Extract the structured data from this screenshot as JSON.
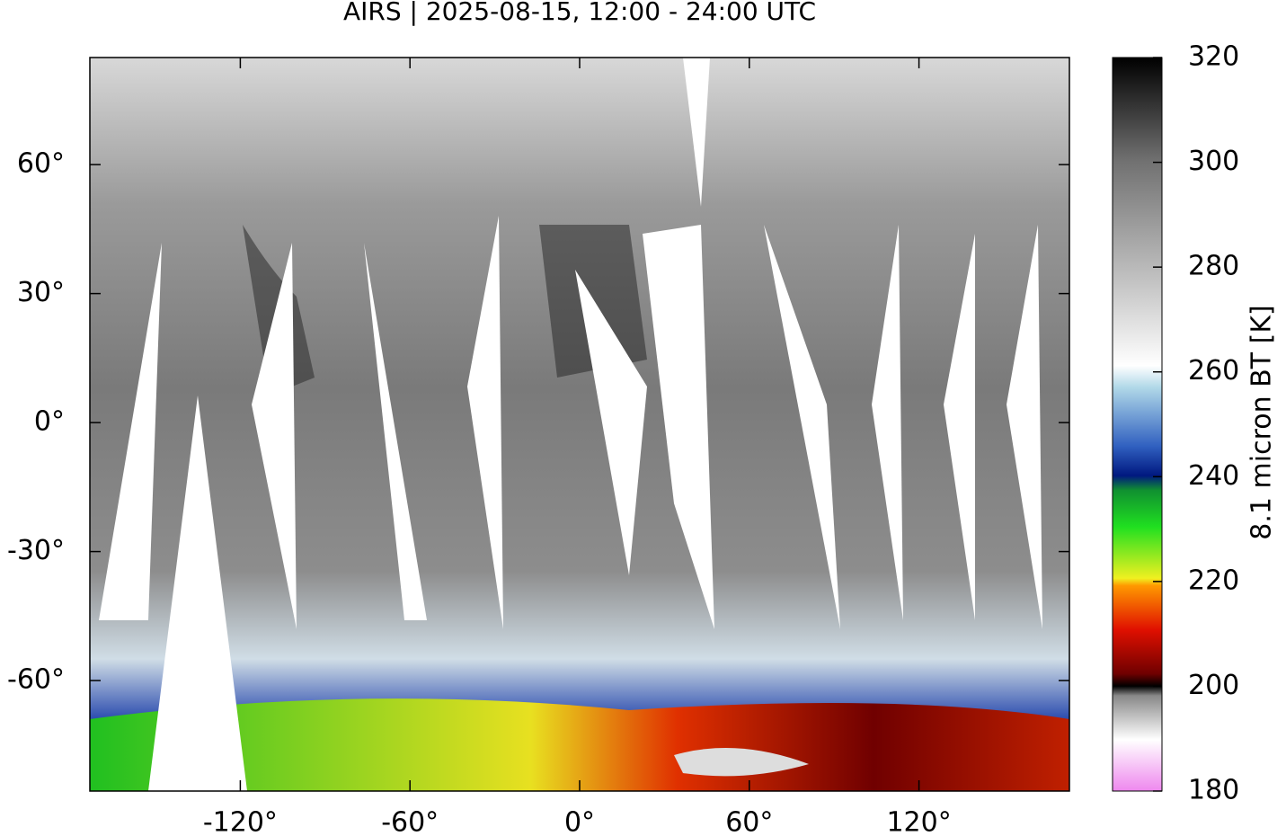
{
  "title": "AIRS | 2025-08-15, 12:00 - 24:00 UTC",
  "map": {
    "xlim": [
      -173.2,
      173.2
    ],
    "ylim": [
      -85.7,
      84.9
    ],
    "xticks": [
      {
        "value": -120,
        "label": "-120°"
      },
      {
        "value": -60,
        "label": "-60°"
      },
      {
        "value": 0,
        "label": "0°"
      },
      {
        "value": 60,
        "label": "60°"
      },
      {
        "value": 120,
        "label": "120°"
      }
    ],
    "yticks": [
      {
        "value": 60,
        "label": "60°"
      },
      {
        "value": 30,
        "label": "30°"
      },
      {
        "value": 0,
        "label": "0°"
      },
      {
        "value": -30,
        "label": "-30°"
      },
      {
        "value": -60,
        "label": "-60°"
      }
    ]
  },
  "colorbar": {
    "label": "8.1 micron BT [K]",
    "lim": [
      180,
      320
    ],
    "ticks": [
      180,
      200,
      220,
      240,
      260,
      280,
      300,
      320
    ]
  }
}
